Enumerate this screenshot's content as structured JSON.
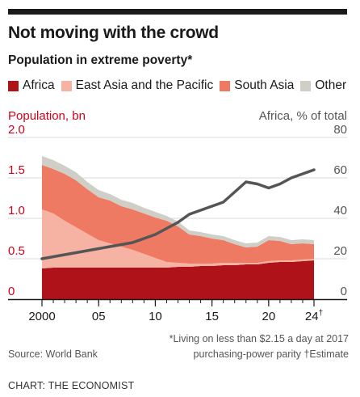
{
  "header": {
    "title": "Not moving with the crowd",
    "subtitle": "Population in extreme poverty*"
  },
  "legend": [
    {
      "label": "Africa",
      "color": "#b0121a"
    },
    {
      "label": "East Asia and the Pacific",
      "color": "#f6b3a3"
    },
    {
      "label": "South Asia",
      "color": "#ef7a63"
    },
    {
      "label": "Other",
      "color": "#cfcfc8"
    }
  ],
  "chart_data": {
    "type": "area",
    "left_axis_label": "Population, bn",
    "right_axis_label": "Africa, % of total",
    "left_ylim": [
      0,
      2.0
    ],
    "right_ylim": [
      0,
      80
    ],
    "left_ticks": [
      "2.0",
      "1.5",
      "1.0",
      "0.5",
      "0"
    ],
    "right_ticks": [
      "80",
      "60",
      "40",
      "20",
      "0"
    ],
    "x_ticks": [
      {
        "year": 2000,
        "label": "2000"
      },
      {
        "year": 2005,
        "label": "05"
      },
      {
        "year": 2010,
        "label": "10"
      },
      {
        "year": 2015,
        "label": "15"
      },
      {
        "year": 2020,
        "label": "20"
      },
      {
        "year": 2024,
        "label": "24",
        "marker": "†"
      }
    ],
    "x": [
      2000,
      2001,
      2002,
      2003,
      2004,
      2005,
      2006,
      2007,
      2008,
      2009,
      2010,
      2011,
      2012,
      2013,
      2014,
      2015,
      2016,
      2017,
      2018,
      2019,
      2020,
      2021,
      2022,
      2023,
      2024
    ],
    "series": [
      {
        "name": "Africa",
        "color": "#b0121a",
        "values": [
          0.38,
          0.39,
          0.39,
          0.39,
          0.39,
          0.39,
          0.39,
          0.39,
          0.39,
          0.39,
          0.39,
          0.39,
          0.4,
          0.4,
          0.41,
          0.41,
          0.42,
          0.42,
          0.43,
          0.43,
          0.45,
          0.46,
          0.46,
          0.47,
          0.48
        ]
      },
      {
        "name": "East Asia and the Pacific",
        "color": "#f6b3a3",
        "values": [
          0.73,
          0.67,
          0.58,
          0.5,
          0.42,
          0.34,
          0.3,
          0.26,
          0.22,
          0.17,
          0.12,
          0.07,
          0.05,
          0.04,
          0.03,
          0.03,
          0.03,
          0.03,
          0.02,
          0.02,
          0.02,
          0.02,
          0.02,
          0.02,
          0.02
        ]
      },
      {
        "name": "South Asia",
        "color": "#ef7a63",
        "values": [
          0.55,
          0.55,
          0.58,
          0.58,
          0.55,
          0.53,
          0.53,
          0.5,
          0.5,
          0.5,
          0.5,
          0.51,
          0.45,
          0.36,
          0.34,
          0.31,
          0.28,
          0.23,
          0.19,
          0.2,
          0.26,
          0.24,
          0.2,
          0.2,
          0.18
        ]
      },
      {
        "name": "Other",
        "color": "#cfcfc8",
        "values": [
          0.11,
          0.11,
          0.1,
          0.1,
          0.09,
          0.09,
          0.08,
          0.08,
          0.08,
          0.07,
          0.07,
          0.06,
          0.06,
          0.05,
          0.05,
          0.05,
          0.05,
          0.05,
          0.05,
          0.05,
          0.05,
          0.05,
          0.05,
          0.05,
          0.05
        ]
      },
      {
        "name": "Africa, % of total",
        "axis": "right",
        "color": "#555555",
        "values": [
          20,
          21,
          22,
          23,
          24,
          25,
          26,
          27,
          28,
          30,
          32,
          35,
          38,
          42,
          44,
          46,
          48,
          53,
          58,
          57,
          55,
          57,
          60,
          62,
          64
        ]
      }
    ]
  },
  "footer": {
    "source": "Source: World Bank",
    "footnote_line1": "*Living on less than $2.15 a day at 2017",
    "footnote_line2": "purchasing-power parity  †Estimate",
    "credit": "CHART: THE ECONOMIST"
  }
}
